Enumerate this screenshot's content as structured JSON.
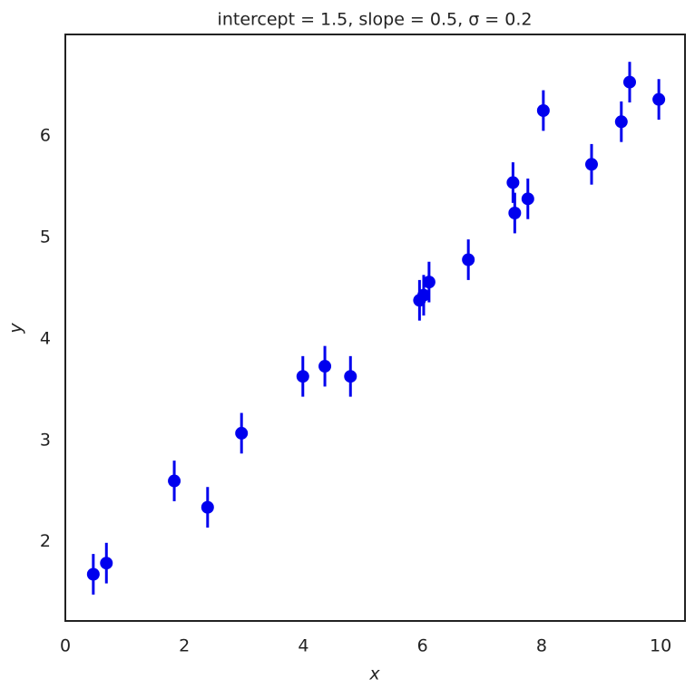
{
  "chart_data": {
    "type": "scatter",
    "title": "intercept  = 1.5, slope  = 0.5,  σ = 0.2",
    "x_label": "x",
    "y_label": "y",
    "x": [
      0.47,
      0.69,
      1.83,
      2.39,
      2.96,
      3.99,
      4.36,
      4.79,
      5.95,
      6.02,
      6.11,
      6.77,
      7.52,
      7.55,
      7.77,
      8.03,
      8.84,
      9.34,
      9.48,
      9.97
    ],
    "y": [
      1.68,
      1.79,
      2.6,
      2.34,
      3.07,
      3.63,
      3.73,
      3.63,
      4.38,
      4.43,
      4.56,
      4.78,
      5.54,
      5.24,
      5.38,
      6.25,
      5.72,
      6.14,
      6.53,
      6.36
    ],
    "errors": [
      0.2,
      0.2,
      0.2,
      0.2,
      0.2,
      0.2,
      0.2,
      0.2,
      0.2,
      0.2,
      0.2,
      0.2,
      0.2,
      0.2,
      0.2,
      0.2,
      0.2,
      0.2,
      0.2,
      0.2
    ],
    "color": "#0000ee",
    "xlim": [
      0,
      10.41
    ],
    "ylim": [
      1.22,
      7.0
    ],
    "xticks": [
      0,
      2,
      4,
      6,
      8,
      10
    ],
    "yticks": [
      2,
      3,
      4,
      5,
      6
    ]
  }
}
